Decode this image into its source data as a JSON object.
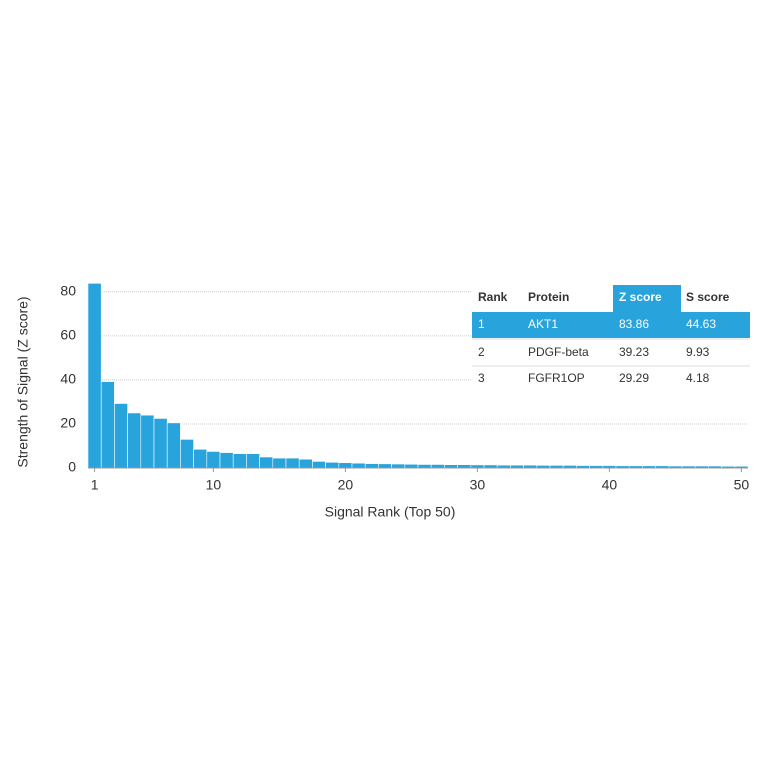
{
  "chart_data": {
    "type": "bar",
    "x_label": "Signal Rank (Top 50)",
    "y_label": "Strength of Signal (Z score)",
    "x": [
      1,
      2,
      3,
      4,
      5,
      6,
      7,
      8,
      9,
      10,
      11,
      12,
      13,
      14,
      15,
      16,
      17,
      18,
      19,
      20,
      21,
      22,
      23,
      24,
      25,
      26,
      27,
      28,
      29,
      30,
      31,
      32,
      33,
      34,
      35,
      36,
      37,
      38,
      39,
      40,
      41,
      42,
      43,
      44,
      45,
      46,
      47,
      48,
      49,
      50
    ],
    "values": [
      83.86,
      39.23,
      29.29,
      25,
      24,
      22.5,
      20.5,
      13,
      8.5,
      7.5,
      7,
      6.5,
      6.5,
      5,
      4.5,
      4.5,
      4,
      3,
      2.6,
      2.4,
      2.2,
      2,
      1.9,
      1.8,
      1.7,
      1.6,
      1.6,
      1.5,
      1.5,
      1.4,
      1.4,
      1.3,
      1.3,
      1.3,
      1.2,
      1.2,
      1.2,
      1.1,
      1.1,
      1.1,
      1,
      1,
      1,
      1,
      0.9,
      0.9,
      0.9,
      0.9,
      0.8,
      0.8
    ],
    "color": "#29a3dc",
    "xlim": [
      0.5,
      50.5
    ],
    "xticks": [
      1,
      10,
      20,
      30,
      40,
      50
    ],
    "ylim": [
      0,
      84
    ],
    "yticks": [
      0,
      20,
      40,
      60,
      80
    ],
    "grid": true,
    "table": {
      "columns": [
        "Rank",
        "Protein",
        "Z score",
        "S score"
      ],
      "rows": [
        [
          1,
          "AKT1",
          83.86,
          44.63
        ],
        [
          2,
          "PDGF-beta",
          39.23,
          9.93
        ],
        [
          3,
          "FGFR1OP",
          29.29,
          4.18
        ]
      ]
    }
  }
}
